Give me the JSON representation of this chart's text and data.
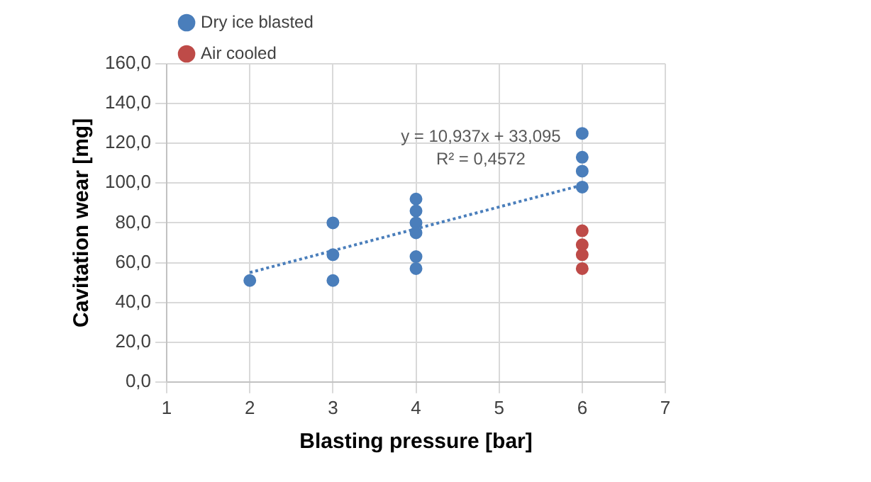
{
  "chart_data": {
    "type": "scatter",
    "xlabel": "Blasting pressure [bar]",
    "ylabel": "Cavitation wear [mg]",
    "xlim": [
      1,
      7
    ],
    "xticks": [
      1,
      2,
      3,
      4,
      5,
      6,
      7
    ],
    "ylim": [
      0,
      160
    ],
    "yticks": [
      {
        "value": 0,
        "label": "0,0"
      },
      {
        "value": 20,
        "label": "20,0"
      },
      {
        "value": 40,
        "label": "40,0"
      },
      {
        "value": 60,
        "label": "60,0"
      },
      {
        "value": 80,
        "label": "80,0"
      },
      {
        "value": 100,
        "label": "100,0"
      },
      {
        "value": 120,
        "label": "120,0"
      },
      {
        "value": 140,
        "label": "140,0"
      },
      {
        "value": 160,
        "label": "160,0"
      }
    ],
    "grid": true,
    "legend": "top left",
    "marker": "circle",
    "series": [
      {
        "name": "Dry ice blasted",
        "color": "#4a7ebb",
        "x": [
          2,
          3,
          3,
          3,
          4,
          4,
          4,
          4,
          4,
          4,
          6,
          6,
          6,
          6
        ],
        "values": [
          51,
          80,
          64,
          51,
          92,
          86,
          80,
          75,
          63,
          57,
          125,
          113,
          106,
          98
        ]
      },
      {
        "name": "Air cooled",
        "color": "#be4b48",
        "x": [
          6,
          6,
          6,
          6
        ],
        "values": [
          76,
          69,
          64,
          57
        ]
      },
      {
        "type": "line",
        "color": "#4a7ebb",
        "line_style": "dotted",
        "marker": "none",
        "x": [
          2,
          6
        ],
        "values": [
          55,
          99
        ]
      }
    ],
    "annotations": [
      "y = 10,937x + 33,095",
      "R² = 0,4572"
    ]
  }
}
